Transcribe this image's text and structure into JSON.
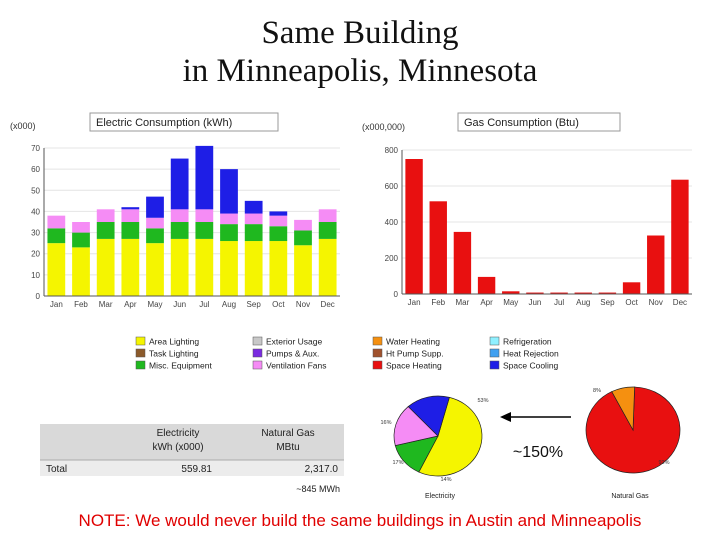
{
  "slide": {
    "title_line1": "Same Building",
    "title_line2": "in Minneapolis, Minnesota",
    "note": "NOTE: We would never build the same buildings in Austin and Minneapolis",
    "increase_label": "~150%"
  },
  "colors": {
    "yellow": "#f5f500",
    "green": "#1fb81f",
    "pink": "#f58cf5",
    "blue": "#1e1ee6",
    "red": "#e81010",
    "orange": "#f59010"
  },
  "legend": {
    "col1": [
      {
        "label": "Area Lighting",
        "color": "#f5f500"
      },
      {
        "label": "Task Lighting",
        "color": "#8b5a2b"
      },
      {
        "label": "Misc. Equipment",
        "color": "#1fb81f"
      }
    ],
    "col2": [
      {
        "label": "Exterior Usage",
        "color": "#c8c8c8"
      },
      {
        "label": "Pumps & Aux.",
        "color": "#7a2be0"
      },
      {
        "label": "Ventilation Fans",
        "color": "#f58cf5"
      }
    ],
    "col3": [
      {
        "label": "Water Heating",
        "color": "#f59010"
      },
      {
        "label": "Ht Pump Supp.",
        "color": "#a0522d"
      },
      {
        "label": "Space Heating",
        "color": "#e81010"
      }
    ],
    "col4": [
      {
        "label": "Refrigeration",
        "color": "#8ff0ff"
      },
      {
        "label": "Heat Rejection",
        "color": "#40a0f0"
      },
      {
        "label": "Space Cooling",
        "color": "#1e1ee6"
      }
    ]
  },
  "table": {
    "col1_header_line1": "Electricity",
    "col1_header_line2": "kWh (x000)",
    "col2_header_line1": "Natural Gas",
    "col2_header_line2": "MBtu",
    "row_label": "Total",
    "electricity_total": "559.81",
    "gas_total": "2,317.0",
    "footnote": "~845 MWh"
  },
  "chart_data": [
    {
      "type": "bar",
      "title": "Electric Consumption (kWh)",
      "unit_label": "(x000)",
      "categories": [
        "Jan",
        "Feb",
        "Mar",
        "Apr",
        "May",
        "Jun",
        "Jul",
        "Aug",
        "Sep",
        "Oct",
        "Nov",
        "Dec"
      ],
      "ylim": [
        0,
        70
      ],
      "yticks": [
        "0",
        "10",
        "20",
        "30",
        "40",
        "50",
        "60",
        "70"
      ],
      "stacked": true,
      "series": [
        {
          "name": "Area Lighting",
          "color": "#f5f500",
          "values": [
            25,
            23,
            27,
            27,
            25,
            27,
            27,
            26,
            26,
            26,
            24,
            27
          ]
        },
        {
          "name": "Misc. Equipment",
          "color": "#1fb81f",
          "values": [
            7,
            7,
            8,
            8,
            7,
            8,
            8,
            8,
            8,
            7,
            7,
            8
          ]
        },
        {
          "name": "Ventilation Fans",
          "color": "#f58cf5",
          "values": [
            6,
            5,
            6,
            6,
            5,
            6,
            6,
            5,
            5,
            5,
            5,
            6
          ]
        },
        {
          "name": "Space Cooling",
          "color": "#1e1ee6",
          "values": [
            0,
            0,
            0,
            1,
            10,
            24,
            30,
            21,
            6,
            2,
            0,
            0
          ]
        }
      ]
    },
    {
      "type": "bar",
      "title": "Gas Consumption (Btu)",
      "unit_label": "(x000,000)",
      "categories": [
        "Jan",
        "Feb",
        "Mar",
        "Apr",
        "May",
        "Jun",
        "Jul",
        "Aug",
        "Sep",
        "Oct",
        "Nov",
        "Dec"
      ],
      "ylim": [
        0,
        800
      ],
      "yticks": [
        "0",
        "200",
        "400",
        "600",
        "800"
      ],
      "series": [
        {
          "name": "Space Heating",
          "color": "#e81010",
          "values": [
            750,
            515,
            345,
            95,
            15,
            8,
            8,
            8,
            8,
            65,
            325,
            635
          ]
        }
      ]
    },
    {
      "type": "pie",
      "title": "Electricity",
      "slices": [
        {
          "name": "Area Lighting",
          "value": 53,
          "label": "53%",
          "color": "#f5f500"
        },
        {
          "name": "Misc. Equipment",
          "value": 14,
          "label": "14%",
          "color": "#1fb81f"
        },
        {
          "name": "Ventilation Fans",
          "value": 17,
          "label": "17%",
          "color": "#f58cf5"
        },
        {
          "name": "Space Cooling",
          "value": 16,
          "label": "16%",
          "color": "#1e1ee6"
        }
      ]
    },
    {
      "type": "pie",
      "title": "Natural Gas",
      "slices": [
        {
          "name": "Space Heating",
          "value": 92,
          "label": "92%",
          "color": "#e81010"
        },
        {
          "name": "Water Heating",
          "value": 8,
          "label": "8%",
          "color": "#f59010"
        }
      ]
    }
  ]
}
